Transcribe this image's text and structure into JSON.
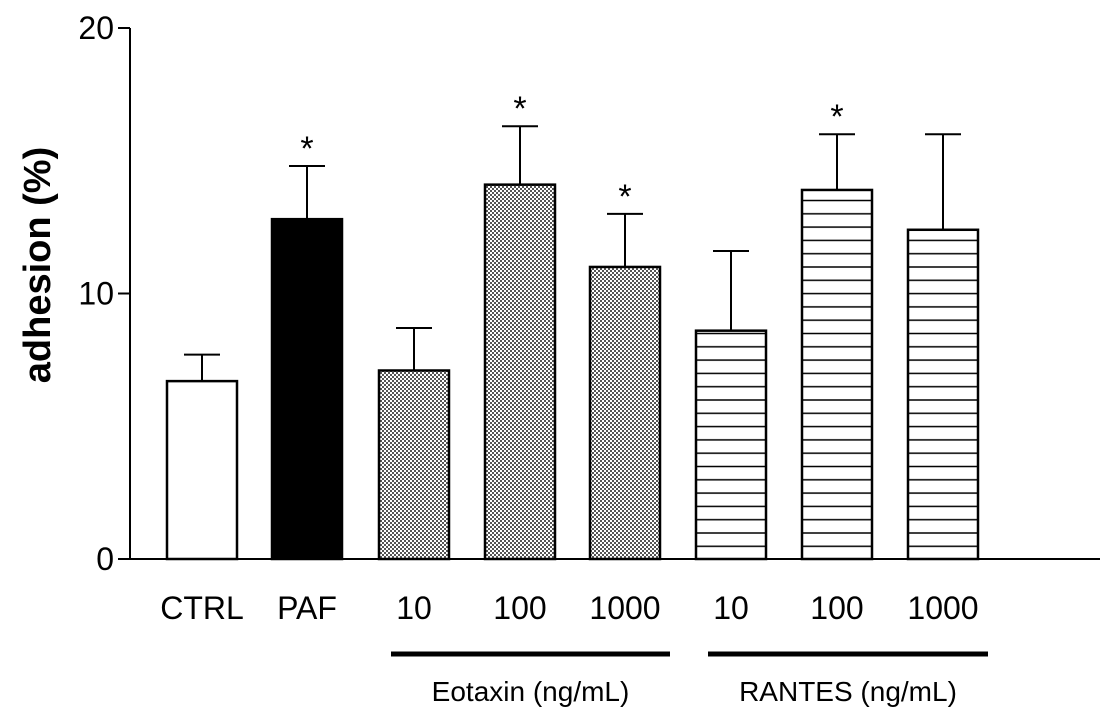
{
  "chart_data": {
    "type": "bar",
    "title": "",
    "xlabel": "",
    "ylabel": "adhesion (%)",
    "ylim": [
      0,
      20
    ],
    "yticks": [
      "0",
      "10",
      "20"
    ],
    "grid": false,
    "legend": "none",
    "categories": [
      {
        "label": "CTRL",
        "value": 6.7,
        "error": 1.0,
        "fill": "white",
        "significant": false
      },
      {
        "label": "PAF",
        "value": 12.8,
        "error": 2.0,
        "fill": "black",
        "significant": true
      },
      {
        "label": "10",
        "value": 7.1,
        "error": 1.6,
        "fill": "stipple",
        "significant": false
      },
      {
        "label": "100",
        "value": 14.1,
        "error": 2.2,
        "fill": "stipple",
        "significant": true
      },
      {
        "label": "1000",
        "value": 11.0,
        "error": 2.0,
        "fill": "stipple",
        "significant": true
      },
      {
        "label": "10",
        "value": 8.6,
        "error": 3.0,
        "fill": "horizontal-lines",
        "significant": false
      },
      {
        "label": "100",
        "value": 13.9,
        "error": 2.1,
        "fill": "horizontal-lines",
        "significant": true
      },
      {
        "label": "1000",
        "value": 12.4,
        "error": 3.6,
        "fill": "horizontal-lines",
        "significant": false
      }
    ],
    "significance_marker": "*",
    "groups": [
      {
        "label": "Eotaxin (ng/mL)",
        "first": 2,
        "last": 4
      },
      {
        "label": "RANTES (ng/mL)",
        "first": 5,
        "last": 7
      }
    ]
  }
}
